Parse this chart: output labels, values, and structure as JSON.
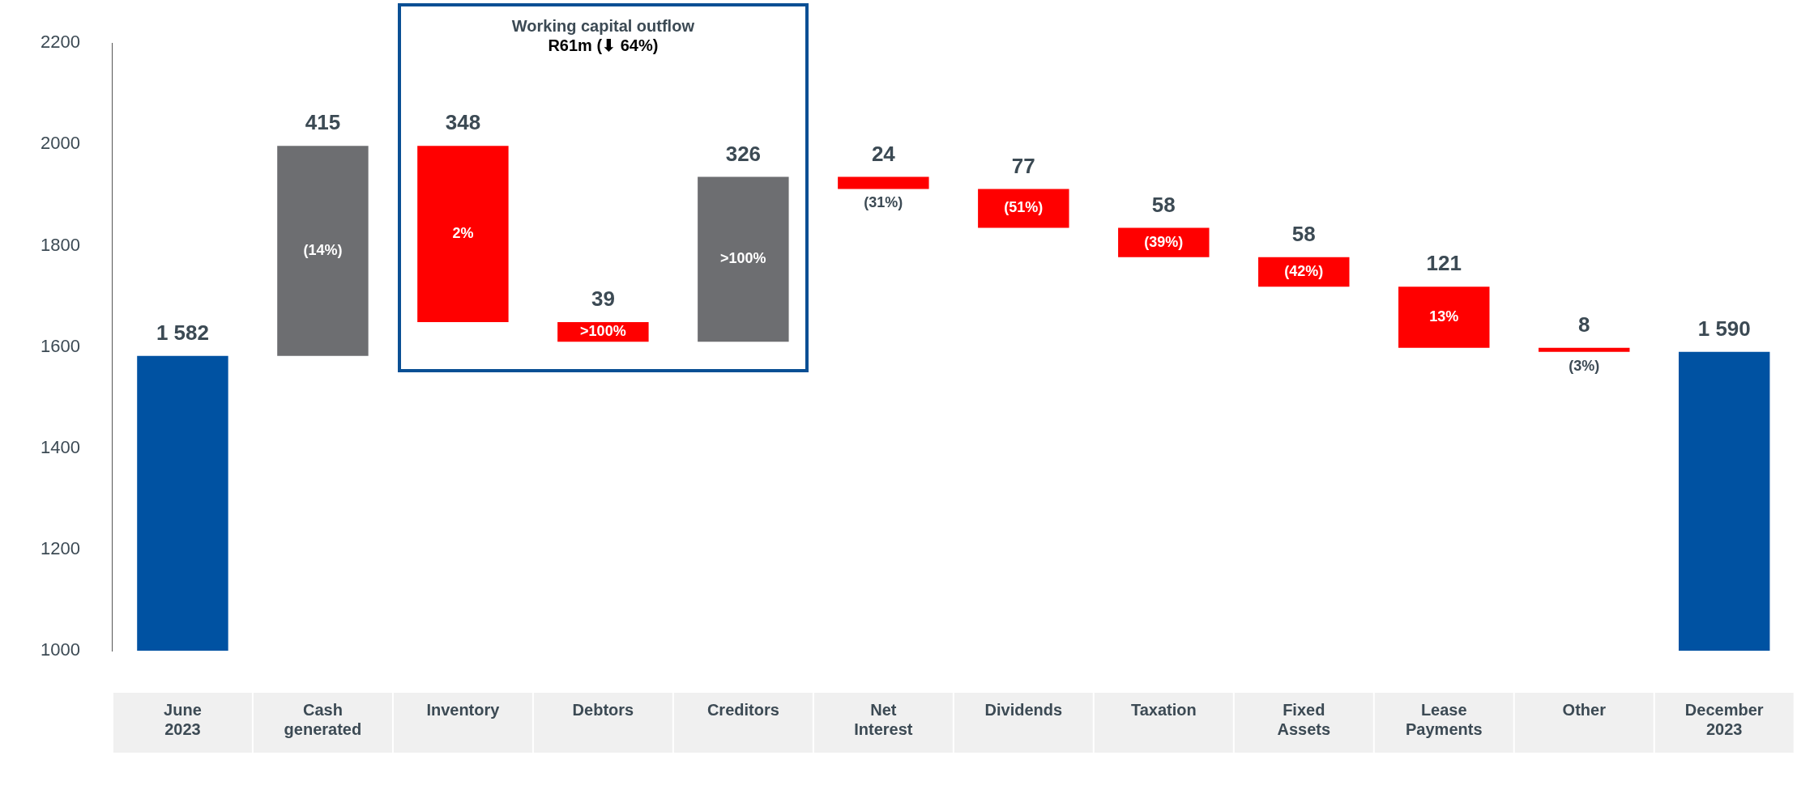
{
  "chart_data": {
    "type": "bar",
    "categories": [
      "June 2023",
      "Cash generated",
      "Inventory",
      "Debtors",
      "Creditors",
      "Net Interest",
      "Dividends",
      "Taxation",
      "Fixed Assets",
      "Lease Payments",
      "Other",
      "December 2023"
    ],
    "values": [
      1582,
      415,
      -348,
      -39,
      326,
      -24,
      -77,
      -58,
      -58,
      -121,
      -8,
      1590
    ],
    "base": [
      null,
      1582,
      1997,
      1649,
      1610,
      1936,
      1912,
      1835,
      1777,
      1719,
      1598,
      null
    ],
    "colors": [
      "#0052a2",
      "#6d6e71",
      "#ff0000",
      "#ff0000",
      "#6d6e71",
      "#ff0000",
      "#ff0000",
      "#ff0000",
      "#ff0000",
      "#ff0000",
      "#ff0000",
      "#0052a2"
    ],
    "value_labels": [
      "1 582",
      "415",
      "348",
      "39",
      "326",
      "24",
      "77",
      "58",
      "58",
      "121",
      "8",
      "1 590"
    ],
    "ylim": [
      1000,
      2200
    ],
    "yticks": [
      1000,
      1200,
      1400,
      1600,
      1800,
      2000,
      2200
    ],
    "grid": false,
    "legend": false,
    "annotations": [
      "(14%)",
      "2%",
      ">100%",
      ">100%",
      "(31%)",
      "(51%)",
      "(39%)",
      "(42%)",
      "13%",
      "(3%)",
      "Working capital outflow",
      "R61m (⬇ 64%)"
    ]
  }
}
